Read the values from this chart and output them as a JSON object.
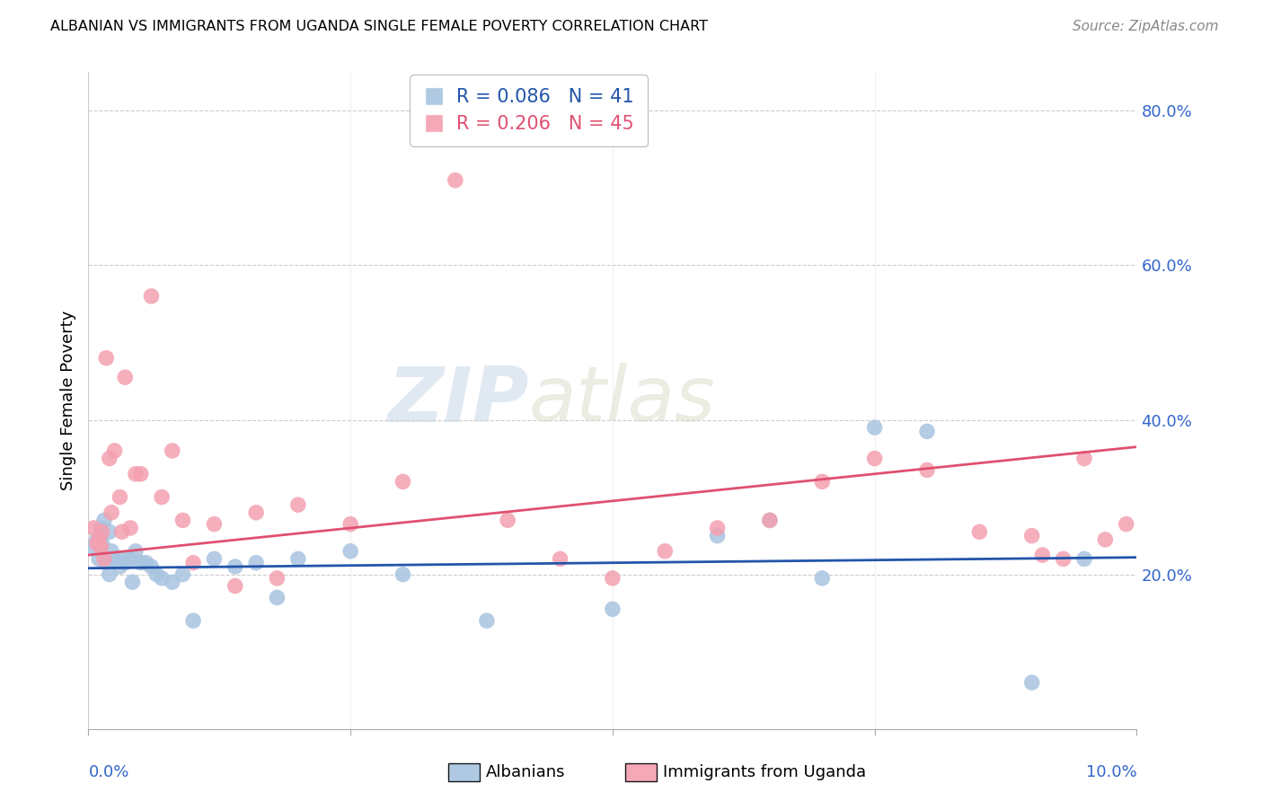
{
  "title": "ALBANIAN VS IMMIGRANTS FROM UGANDA SINGLE FEMALE POVERTY CORRELATION CHART",
  "source": "Source: ZipAtlas.com",
  "ylabel": "Single Female Poverty",
  "legend_r1": "R = 0.086   N = 41",
  "legend_r2": "R = 0.206   N = 45",
  "legend_label1": "Albanians",
  "legend_label2": "Immigrants from Uganda",
  "watermark_zip": "ZIP",
  "watermark_atlas": "atlas",
  "color_blue": "#a8c4e0",
  "color_pink": "#f4a0b0",
  "color_line_blue": "#2255aa",
  "color_line_pink": "#e05070",
  "color_right_axis": "#3366CC",
  "albanians_x": [
    0.0005,
    0.0008,
    0.001,
    0.0012,
    0.0013,
    0.0015,
    0.0017,
    0.002,
    0.002,
    0.0022,
    0.0025,
    0.003,
    0.0032,
    0.0035,
    0.004,
    0.0042,
    0.0045,
    0.005,
    0.0055,
    0.006,
    0.0065,
    0.007,
    0.008,
    0.009,
    0.01,
    0.012,
    0.014,
    0.016,
    0.018,
    0.02,
    0.025,
    0.03,
    0.038,
    0.05,
    0.06,
    0.065,
    0.07,
    0.075,
    0.08,
    0.09,
    0.095
  ],
  "albanians_y": [
    0.235,
    0.245,
    0.22,
    0.26,
    0.24,
    0.27,
    0.215,
    0.255,
    0.2,
    0.23,
    0.22,
    0.21,
    0.22,
    0.215,
    0.22,
    0.19,
    0.23,
    0.215,
    0.215,
    0.21,
    0.2,
    0.195,
    0.19,
    0.2,
    0.14,
    0.22,
    0.21,
    0.215,
    0.17,
    0.22,
    0.23,
    0.2,
    0.14,
    0.155,
    0.25,
    0.27,
    0.195,
    0.39,
    0.385,
    0.06,
    0.22
  ],
  "uganda_x": [
    0.0005,
    0.0008,
    0.001,
    0.0012,
    0.0013,
    0.0015,
    0.0017,
    0.002,
    0.0022,
    0.0025,
    0.003,
    0.0032,
    0.0035,
    0.004,
    0.0045,
    0.005,
    0.006,
    0.007,
    0.008,
    0.009,
    0.01,
    0.012,
    0.014,
    0.016,
    0.018,
    0.02,
    0.025,
    0.03,
    0.035,
    0.04,
    0.045,
    0.05,
    0.055,
    0.06,
    0.065,
    0.07,
    0.075,
    0.08,
    0.085,
    0.09,
    0.091,
    0.093,
    0.095,
    0.097,
    0.099
  ],
  "uganda_y": [
    0.26,
    0.24,
    0.245,
    0.235,
    0.255,
    0.22,
    0.48,
    0.35,
    0.28,
    0.36,
    0.3,
    0.255,
    0.455,
    0.26,
    0.33,
    0.33,
    0.56,
    0.3,
    0.36,
    0.27,
    0.215,
    0.265,
    0.185,
    0.28,
    0.195,
    0.29,
    0.265,
    0.32,
    0.71,
    0.27,
    0.22,
    0.195,
    0.23,
    0.26,
    0.27,
    0.32,
    0.35,
    0.335,
    0.255,
    0.25,
    0.225,
    0.22,
    0.35,
    0.245,
    0.265
  ],
  "xlim": [
    0.0,
    0.1
  ],
  "ylim": [
    0.0,
    0.85
  ],
  "blue_line_x": [
    0.0,
    0.1
  ],
  "blue_line_y": [
    0.208,
    0.222
  ],
  "pink_line_x": [
    0.0,
    0.1
  ],
  "pink_line_y": [
    0.225,
    0.365
  ]
}
